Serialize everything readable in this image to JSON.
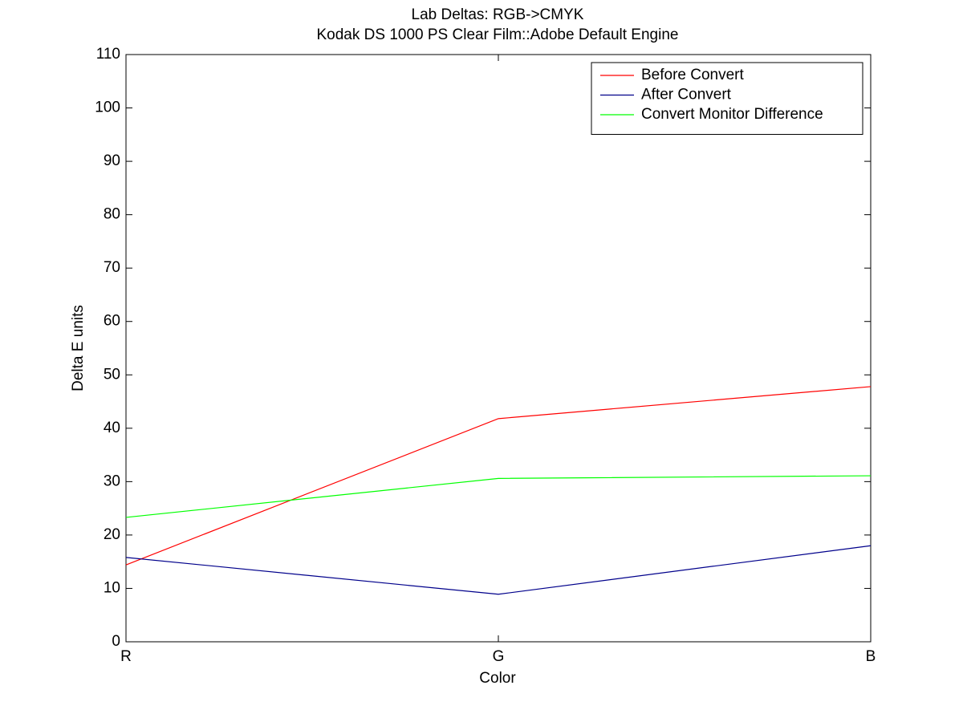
{
  "chart_data": {
    "type": "line",
    "title": "Lab Deltas: RGB->CMYK",
    "subtitle": "Kodak DS 1000 PS Clear Film::Adobe Default Engine",
    "x_label": "Color",
    "y_label": "Delta E units",
    "categories": [
      "R",
      "G",
      "B"
    ],
    "series": [
      {
        "name": "Before Convert",
        "color": "#ff0000",
        "values": [
          14.4,
          41.8,
          47.8
        ]
      },
      {
        "name": "After Convert",
        "color": "#00008b",
        "values": [
          15.8,
          8.9,
          18.0
        ]
      },
      {
        "name": "Convert Monitor Difference",
        "color": "#00ff00",
        "values": [
          23.3,
          30.6,
          31.1
        ]
      }
    ],
    "ylim": [
      0,
      110
    ],
    "yticks": [
      0,
      10,
      20,
      30,
      40,
      50,
      60,
      70,
      80,
      90,
      100,
      110
    ],
    "grid": false,
    "legend": "top-right"
  }
}
